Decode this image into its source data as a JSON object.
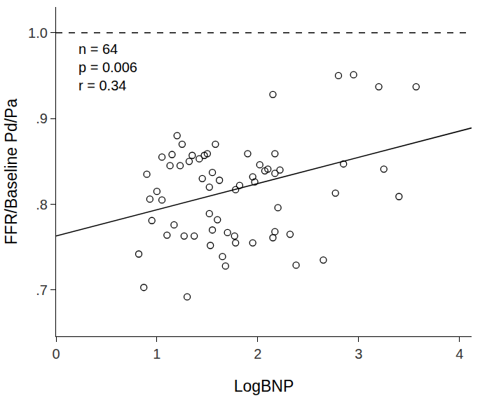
{
  "chart_data": {
    "type": "scatter",
    "x_label": "LogBNP",
    "y_label": "FFR/Baseline Pd/Pa",
    "annotations": [
      "n = 64",
      "p = 0.006",
      "r = 0.34"
    ],
    "marker": "circle-open",
    "color": "#000000",
    "x": [
      0.82,
      0.87,
      0.9,
      0.93,
      0.95,
      1.0,
      1.05,
      1.05,
      1.1,
      1.13,
      1.15,
      1.17,
      1.2,
      1.23,
      1.25,
      1.27,
      1.3,
      1.32,
      1.35,
      1.37,
      1.42,
      1.45,
      1.47,
      1.5,
      1.52,
      1.52,
      1.53,
      1.55,
      1.55,
      1.58,
      1.6,
      1.62,
      1.65,
      1.68,
      1.7,
      1.77,
      1.78,
      1.78,
      1.82,
      1.9,
      1.95,
      1.95,
      1.97,
      2.02,
      2.07,
      2.1,
      2.15,
      2.15,
      2.17,
      2.17,
      2.17,
      2.2,
      2.22,
      2.32,
      2.38,
      2.65,
      2.77,
      2.8,
      2.85,
      2.95,
      3.2,
      3.25,
      3.4,
      3.57
    ],
    "values": [
      0.742,
      0.703,
      0.835,
      0.806,
      0.781,
      0.815,
      0.805,
      0.855,
      0.764,
      0.845,
      0.858,
      0.776,
      0.88,
      0.845,
      0.87,
      0.763,
      0.692,
      0.85,
      0.857,
      0.763,
      0.853,
      0.83,
      0.857,
      0.859,
      0.789,
      0.82,
      0.752,
      0.837,
      0.77,
      0.87,
      0.782,
      0.828,
      0.739,
      0.728,
      0.767,
      0.763,
      0.755,
      0.817,
      0.822,
      0.859,
      0.755,
      0.832,
      0.826,
      0.846,
      0.839,
      0.841,
      0.928,
      0.761,
      0.836,
      0.859,
      0.768,
      0.796,
      0.84,
      0.765,
      0.729,
      0.735,
      0.813,
      0.95,
      0.847,
      0.951,
      0.937,
      0.841,
      0.809,
      0.937
    ],
    "series": [
      {
        "type": "line",
        "x": [
          0,
          4.12
        ],
        "values": [
          0.763,
          0.889
        ],
        "color": "#000000",
        "line_style": "solid"
      },
      {
        "type": "line",
        "x": [
          0,
          4.12
        ],
        "values": [
          1.0,
          1.0
        ],
        "color": "#000000",
        "line_style": "dashed"
      }
    ],
    "xlim": [
      0,
      4.12
    ],
    "ylim": [
      0.646,
      1.03
    ],
    "xticks": [
      0,
      1,
      2,
      3,
      4
    ],
    "yticks": [
      {
        "value": 0.7,
        "label": ".7"
      },
      {
        "value": 0.8,
        "label": ".8"
      },
      {
        "value": 0.9,
        "label": ".9"
      },
      {
        "value": 1.0,
        "label": "1.0"
      }
    ],
    "grid": false
  }
}
